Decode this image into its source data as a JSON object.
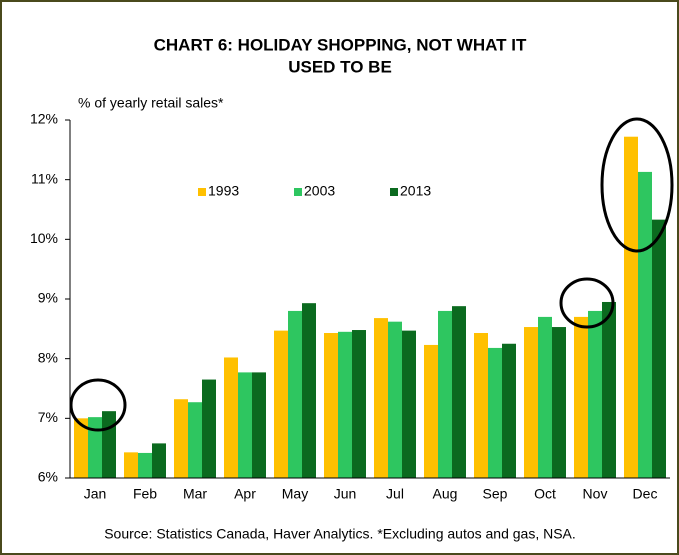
{
  "chart_data": {
    "type": "bar",
    "title": [
      "CHART 6: HOLIDAY SHOPPING, NOT WHAT IT",
      "USED TO BE"
    ],
    "y_axis_label": "% of yearly retail sales*",
    "source": "Source: Statistics Canada, Haver Analytics. *Excluding autos and gas, NSA.",
    "categories": [
      "Jan",
      "Feb",
      "Mar",
      "Apr",
      "May",
      "Jun",
      "Jul",
      "Aug",
      "Sep",
      "Oct",
      "Nov",
      "Dec"
    ],
    "series": [
      {
        "name": "1993",
        "color": "#ffc000",
        "values": [
          7.0,
          6.43,
          7.32,
          8.02,
          8.47,
          8.43,
          8.68,
          8.23,
          8.43,
          8.53,
          8.7,
          11.72
        ]
      },
      {
        "name": "2003",
        "color": "#2ec660",
        "values": [
          7.02,
          6.42,
          7.27,
          7.77,
          8.8,
          8.45,
          8.62,
          8.8,
          8.18,
          8.7,
          8.8,
          11.13
        ]
      },
      {
        "name": "2013",
        "color": "#0b6a1f",
        "values": [
          7.12,
          6.58,
          7.65,
          7.77,
          8.93,
          8.48,
          8.47,
          8.88,
          8.25,
          8.53,
          8.95,
          10.33
        ]
      }
    ],
    "ylim": [
      6,
      12
    ],
    "yticks": [
      {
        "value": 6,
        "label": "6%"
      },
      {
        "value": 7,
        "label": "7%"
      },
      {
        "value": 8,
        "label": "8%"
      },
      {
        "value": 9,
        "label": "9%"
      },
      {
        "value": 10,
        "label": "10%"
      },
      {
        "value": 11,
        "label": "11%"
      },
      {
        "value": 12,
        "label": "12%"
      }
    ],
    "legend": "upper center"
  }
}
